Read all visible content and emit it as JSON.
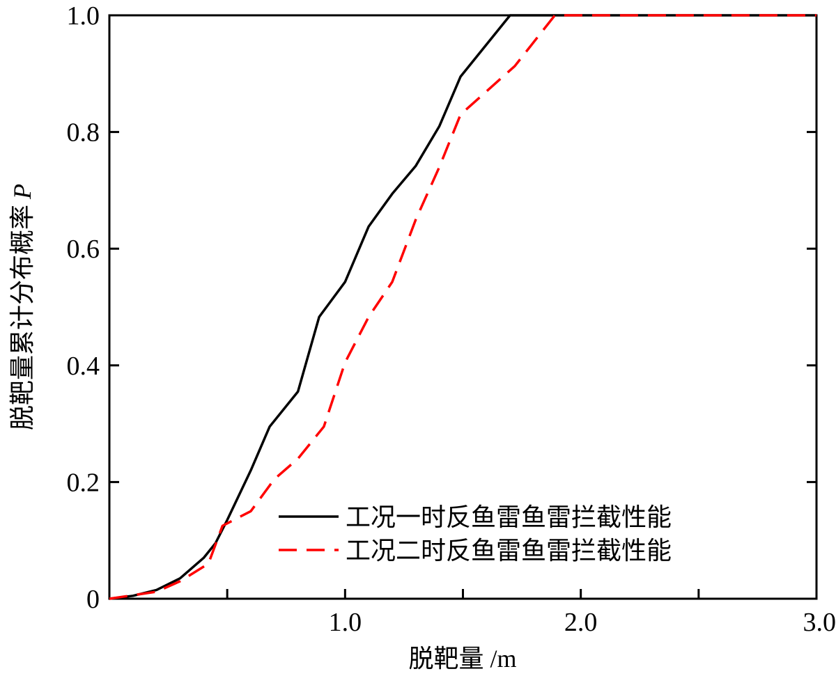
{
  "chart_data": {
    "type": "line",
    "title": "",
    "xlabel": "脱靶量 /m",
    "ylabel": "脱靶量累计分布概率",
    "ylabel_symbol": "P",
    "xlim": [
      0,
      3.0
    ],
    "ylim": [
      0,
      1.0
    ],
    "x_ticks": [
      1.0,
      2.0,
      3.0
    ],
    "x_tick_labels": [
      "1.0",
      "2.0",
      "3.0"
    ],
    "y_ticks": [
      0,
      0.2,
      0.4,
      0.6,
      0.8,
      1.0
    ],
    "y_tick_labels": [
      "0",
      "0.2",
      "0.4",
      "0.6",
      "0.8",
      "1.0"
    ],
    "grid": false,
    "legend_position": "lower-right",
    "series": [
      {
        "name": "工况一时反鱼雷鱼雷拦截性能",
        "color": "#000000",
        "style": "solid",
        "x": [
          0,
          0.1,
          0.2,
          0.3,
          0.4,
          0.45,
          0.5,
          0.6,
          0.68,
          0.8,
          0.89,
          1.0,
          1.1,
          1.2,
          1.3,
          1.4,
          1.49,
          1.7,
          3.0
        ],
        "y": [
          0,
          0.005,
          0.015,
          0.035,
          0.07,
          0.095,
          0.135,
          0.22,
          0.295,
          0.355,
          0.483,
          0.543,
          0.638,
          0.694,
          0.742,
          0.81,
          0.895,
          1.0,
          1.0
        ]
      },
      {
        "name": "工况二时反鱼雷鱼雷拦截性能",
        "color": "#ff0000",
        "style": "dashed",
        "x": [
          0,
          0.2,
          0.3,
          0.42,
          0.48,
          0.6,
          0.7,
          0.8,
          0.91,
          1.0,
          1.1,
          1.2,
          1.3,
          1.4,
          1.49,
          1.72,
          1.89,
          3.0
        ],
        "y": [
          0,
          0.012,
          0.03,
          0.06,
          0.125,
          0.15,
          0.205,
          0.24,
          0.295,
          0.405,
          0.483,
          0.543,
          0.65,
          0.74,
          0.83,
          0.913,
          1.0,
          1.0
        ]
      }
    ]
  }
}
